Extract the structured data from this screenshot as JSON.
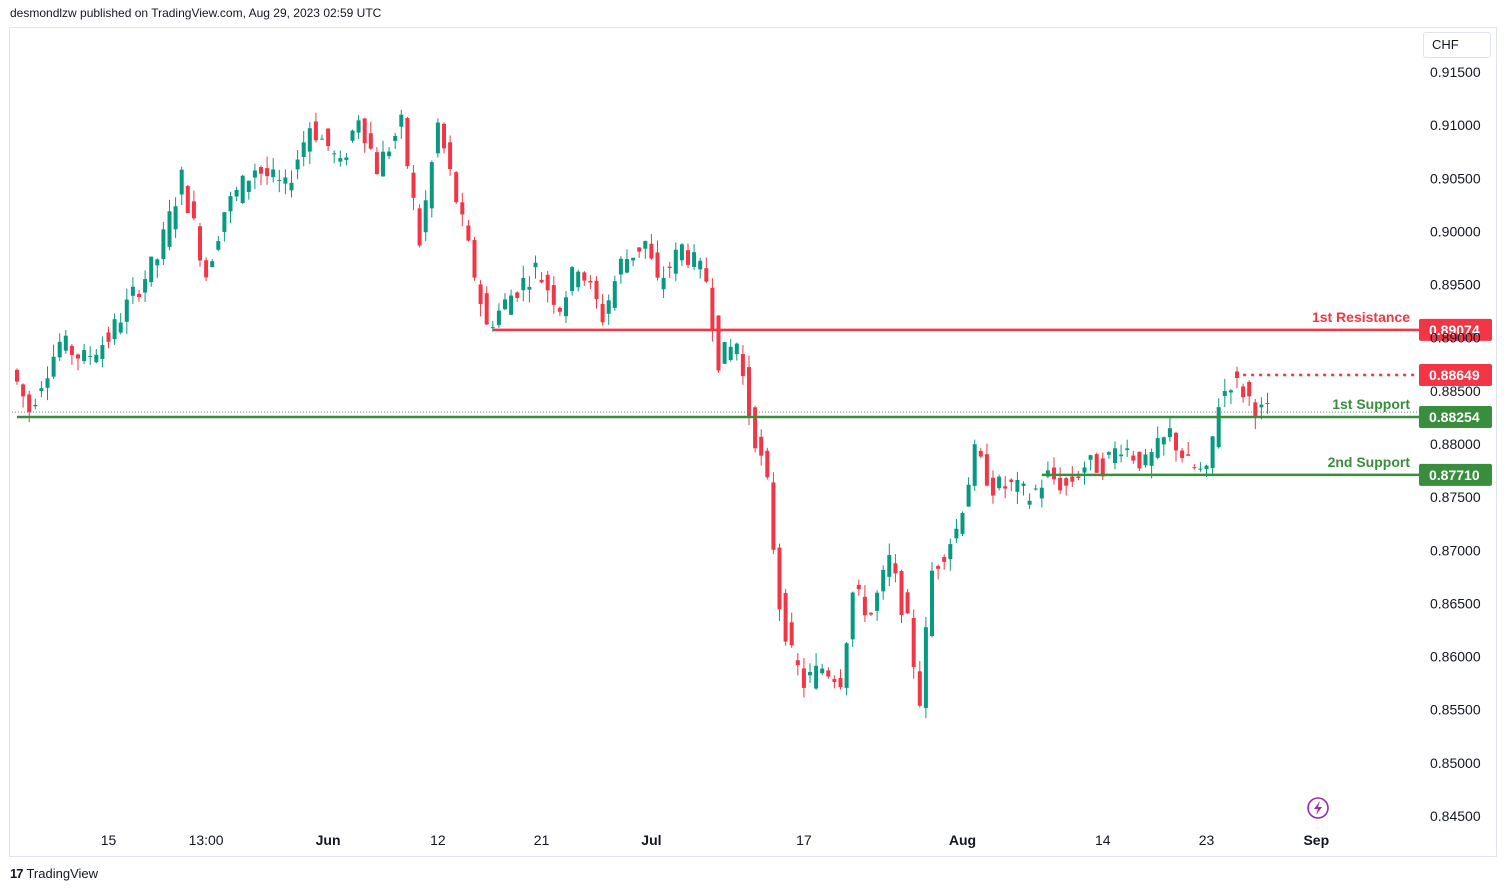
{
  "header": {
    "published_by": "desmondlzw published on TradingView.com, Aug 29, 2023 02:59 UTC"
  },
  "footer": {
    "brand": "TradingView",
    "logo_text": "17"
  },
  "chart_data": {
    "type": "candlestick",
    "currency": "CHF",
    "ylim": [
      0.8425,
      0.9175
    ],
    "y_ticks": [
      "0.91500",
      "0.91000",
      "0.90500",
      "0.90000",
      "0.89500",
      "0.89000",
      "0.88500",
      "0.88000",
      "0.87500",
      "0.87000",
      "0.86500",
      "0.86000",
      "0.85500",
      "0.85000",
      "0.84500"
    ],
    "y_tick_values": [
      0.915,
      0.91,
      0.905,
      0.9,
      0.895,
      0.89,
      0.885,
      0.88,
      0.875,
      0.87,
      0.865,
      0.86,
      0.855,
      0.85,
      0.845
    ],
    "x_ticks": [
      "15",
      "13:00",
      "Jun",
      "12",
      "21",
      "Jul",
      "17",
      "Aug",
      "14",
      "23",
      "Sep"
    ],
    "x_tick_bold": [
      false,
      false,
      true,
      false,
      false,
      true,
      false,
      true,
      false,
      false,
      true
    ],
    "x_tick_index": [
      15,
      31,
      51,
      69,
      86,
      104,
      129,
      155,
      178,
      195,
      213
    ],
    "bar_count": 223,
    "trend_anchors": [
      [
        0,
        0.887
      ],
      [
        3,
        0.8832
      ],
      [
        5,
        0.886
      ],
      [
        8,
        0.8895
      ],
      [
        12,
        0.888
      ],
      [
        16,
        0.89
      ],
      [
        20,
        0.894
      ],
      [
        24,
        0.8975
      ],
      [
        28,
        0.905
      ],
      [
        32,
        0.896
      ],
      [
        35,
        0.902
      ],
      [
        40,
        0.906
      ],
      [
        45,
        0.904
      ],
      [
        49,
        0.91
      ],
      [
        52,
        0.908
      ],
      [
        54,
        0.906
      ],
      [
        57,
        0.911
      ],
      [
        60,
        0.906
      ],
      [
        64,
        0.91
      ],
      [
        67,
        0.899
      ],
      [
        70,
        0.91
      ],
      [
        73,
        0.903
      ],
      [
        76,
        0.896
      ],
      [
        78,
        0.891
      ],
      [
        82,
        0.894
      ],
      [
        86,
        0.8965
      ],
      [
        90,
        0.893
      ],
      [
        93,
        0.897
      ],
      [
        97,
        0.892
      ],
      [
        100,
        0.897
      ],
      [
        104,
        0.899
      ],
      [
        106,
        0.895
      ],
      [
        110,
        0.8985
      ],
      [
        114,
        0.8955
      ],
      [
        116,
        0.888
      ],
      [
        119,
        0.8895
      ],
      [
        121,
        0.883
      ],
      [
        124,
        0.876
      ],
      [
        126,
        0.865
      ],
      [
        128,
        0.86
      ],
      [
        130,
        0.8575
      ],
      [
        133,
        0.859
      ],
      [
        136,
        0.858
      ],
      [
        138,
        0.866
      ],
      [
        141,
        0.864
      ],
      [
        144,
        0.869
      ],
      [
        147,
        0.863
      ],
      [
        149,
        0.856
      ],
      [
        151,
        0.868
      ],
      [
        155,
        0.872
      ],
      [
        158,
        0.879
      ],
      [
        161,
        0.876
      ],
      [
        164,
        0.876
      ],
      [
        167,
        0.875
      ],
      [
        170,
        0.877
      ],
      [
        173,
        0.876
      ],
      [
        176,
        0.878
      ],
      [
        179,
        0.878
      ],
      [
        182,
        0.88
      ],
      [
        186,
        0.878
      ],
      [
        190,
        0.881
      ],
      [
        193,
        0.878
      ],
      [
        196,
        0.877
      ],
      [
        198,
        0.884
      ],
      [
        200,
        0.886
      ],
      [
        202,
        0.885
      ],
      [
        204,
        0.8835
      ],
      [
        205,
        0.883
      ]
    ],
    "levels": [
      {
        "name": "1st Resistance",
        "value": 0.89074,
        "label": "0.89074",
        "color": "#f23645",
        "style": "solid",
        "from_index": 78
      },
      {
        "name": "",
        "value": 0.88649,
        "label": "0.88649",
        "color": "#f23645",
        "style": "dotted",
        "from_index": 201
      },
      {
        "name": "1st Support",
        "value": 0.88254,
        "label": "0.88254",
        "color": "#388e3c",
        "style": "solid",
        "from_index": 0
      },
      {
        "name": "2nd Support",
        "value": 0.8771,
        "label": "0.87710",
        "color": "#388e3c",
        "style": "solid",
        "from_index": 168
      }
    ],
    "colors": {
      "up": "#089981",
      "down": "#f23645",
      "grid": "#f0f3fa",
      "axis_text": "#131722"
    }
  }
}
